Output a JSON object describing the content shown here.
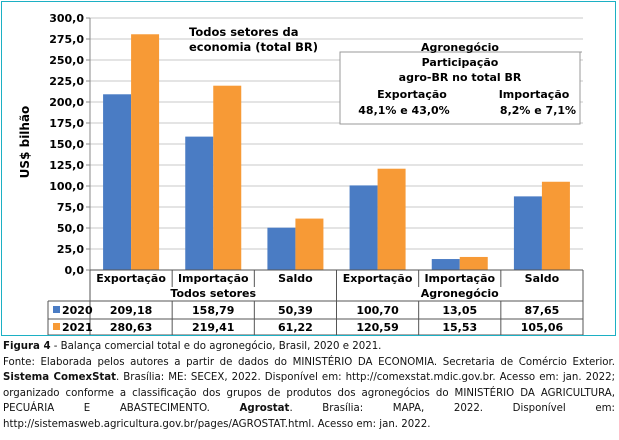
{
  "chart_data": {
    "type": "bar",
    "ylabel": "US$ bilhão",
    "ylim": [
      0,
      300
    ],
    "yticks": [
      "0,0",
      "25,0",
      "50,0",
      "75,0",
      "100,0",
      "125,0",
      "150,0",
      "175,0",
      "200,0",
      "225,0",
      "250,0",
      "275,0",
      "300,0"
    ],
    "categories": [
      "Exportação",
      "Importação",
      "Saldo",
      "Exportação",
      "Importação",
      "Saldo"
    ],
    "groups": [
      "Todos setores",
      "Agronegócio"
    ],
    "series": [
      {
        "name": "2020",
        "color": "#4a7cc4",
        "values": [
          209.18,
          158.79,
          50.39,
          100.7,
          13.05,
          87.65
        ]
      },
      {
        "name": "2021",
        "color": "#f79a36",
        "values": [
          280.63,
          219.41,
          61.22,
          120.59,
          15.53,
          105.06
        ]
      }
    ],
    "table": {
      "2020": [
        "209,18",
        "158,79",
        "50,39",
        "100,70",
        "13,05",
        "87,65"
      ],
      "2021": [
        "280,63",
        "219,41",
        "61,22",
        "120,59",
        "15,53",
        "105,06"
      ]
    },
    "annotations": {
      "todos_line1": "Todos setores da",
      "todos_line2": "economia (total BR)",
      "agro_title": "Agronegócio",
      "box_line1": "Participação",
      "box_line2": "agro-BR no total BR",
      "exp_label": "Exportação",
      "exp_value": "48,1% e 43,0%",
      "imp_label": "Importação",
      "imp_value": "8,2% e 7,1%"
    },
    "grid": true
  },
  "caption": {
    "figure_label": "Figura 4",
    "figure_title": " - Balança comercial total e do agronegócio, Brasil, 2020 e 2021.",
    "source_1": "Fonte: Elaborada pelos autores a partir de dados do MINISTÉRIO DA ECONOMIA. Secretaria de Comércio Exterior. ",
    "source_bold_1": "Sistema ComexStat",
    "source_2": ". Brasília: ME: SECEX, 2022. Disponível em: http://comexstat.mdic.gov.br. Acesso em: jan. 2022; organizado conforme a classificação dos grupos de produtos dos agronegócios do MINISTÉRIO DA AGRICULTURA, PECUÁRIA E ABASTECIMENTO. ",
    "source_bold_2": "Agrostat",
    "source_3": ". Brasília: MAPA, 2022. Disponível em: http://sistemasweb.agricultura.gov.br/pages/AGROSTAT.html. Acesso em: jan. 2022."
  }
}
